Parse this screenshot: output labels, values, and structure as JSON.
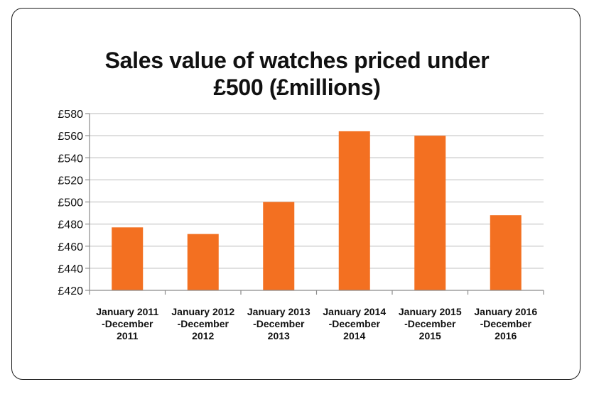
{
  "colors": {
    "bar": "#F37021",
    "grid": "#c8c8c8",
    "axis": "#8a8a8a",
    "text": "#111111"
  },
  "chart_data": {
    "type": "bar",
    "title_lines": [
      "Sales value of watches priced under",
      "£500  (£millions)"
    ],
    "categories": [
      [
        "January 2011",
        "-December",
        "2011"
      ],
      [
        "January 2012",
        "-December",
        "2012"
      ],
      [
        "January 2013",
        "-December",
        "2013"
      ],
      [
        "January 2014",
        "-December",
        "2014"
      ],
      [
        "January 2015",
        "-December",
        "2015"
      ],
      [
        "January 2016",
        "-December",
        "2016"
      ]
    ],
    "values": [
      477,
      471,
      500,
      564,
      560,
      488
    ],
    "ylim": [
      420,
      580
    ],
    "yticks": [
      420,
      440,
      460,
      480,
      500,
      520,
      540,
      560,
      580
    ],
    "ytick_labels": [
      "£420",
      "£440",
      "£460",
      "£480",
      "£500",
      "£520",
      "£540",
      "£560",
      "£580"
    ],
    "grid": true,
    "legend": "none"
  }
}
